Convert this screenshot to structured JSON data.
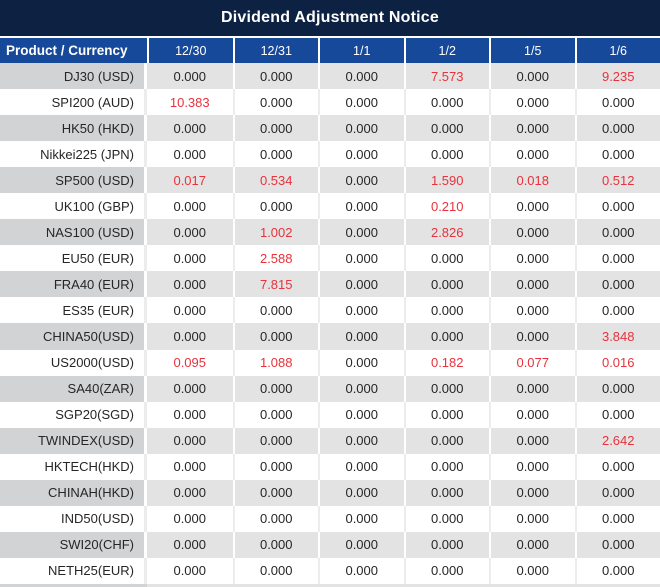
{
  "title": "Dividend Adjustment Notice",
  "table": {
    "product_header": "Product / Currency",
    "date_columns": [
      "12/30",
      "12/31",
      "1/1",
      "1/2",
      "1/5",
      "1/6"
    ],
    "rows": [
      {
        "product": "DJ30 (USD)",
        "values": [
          "0.000",
          "0.000",
          "0.000",
          "7.573",
          "0.000",
          "9.235"
        ],
        "red": [
          3,
          5
        ]
      },
      {
        "product": "SPI200 (AUD)",
        "values": [
          "10.383",
          "0.000",
          "0.000",
          "0.000",
          "0.000",
          "0.000"
        ],
        "red": [
          0
        ]
      },
      {
        "product": "HK50 (HKD)",
        "values": [
          "0.000",
          "0.000",
          "0.000",
          "0.000",
          "0.000",
          "0.000"
        ],
        "red": []
      },
      {
        "product": "Nikkei225 (JPN)",
        "values": [
          "0.000",
          "0.000",
          "0.000",
          "0.000",
          "0.000",
          "0.000"
        ],
        "red": []
      },
      {
        "product": "SP500 (USD)",
        "values": [
          "0.017",
          "0.534",
          "0.000",
          "1.590",
          "0.018",
          "0.512"
        ],
        "red": [
          0,
          1,
          3,
          4,
          5
        ]
      },
      {
        "product": "UK100 (GBP)",
        "values": [
          "0.000",
          "0.000",
          "0.000",
          "0.210",
          "0.000",
          "0.000"
        ],
        "red": [
          3
        ]
      },
      {
        "product": "NAS100 (USD)",
        "values": [
          "0.000",
          "1.002",
          "0.000",
          "2.826",
          "0.000",
          "0.000"
        ],
        "red": [
          1,
          3
        ]
      },
      {
        "product": "EU50 (EUR)",
        "values": [
          "0.000",
          "2.588",
          "0.000",
          "0.000",
          "0.000",
          "0.000"
        ],
        "red": [
          1
        ]
      },
      {
        "product": "FRA40 (EUR)",
        "values": [
          "0.000",
          "7.815",
          "0.000",
          "0.000",
          "0.000",
          "0.000"
        ],
        "red": [
          1
        ]
      },
      {
        "product": "ES35 (EUR)",
        "values": [
          "0.000",
          "0.000",
          "0.000",
          "0.000",
          "0.000",
          "0.000"
        ],
        "red": []
      },
      {
        "product": "CHINA50(USD)",
        "values": [
          "0.000",
          "0.000",
          "0.000",
          "0.000",
          "0.000",
          "3.848"
        ],
        "red": [
          5
        ]
      },
      {
        "product": "US2000(USD)",
        "values": [
          "0.095",
          "1.088",
          "0.000",
          "0.182",
          "0.077",
          "0.016"
        ],
        "red": [
          0,
          1,
          3,
          4,
          5
        ]
      },
      {
        "product": "SA40(ZAR)",
        "values": [
          "0.000",
          "0.000",
          "0.000",
          "0.000",
          "0.000",
          "0.000"
        ],
        "red": []
      },
      {
        "product": "SGP20(SGD)",
        "values": [
          "0.000",
          "0.000",
          "0.000",
          "0.000",
          "0.000",
          "0.000"
        ],
        "red": []
      },
      {
        "product": "TWINDEX(USD)",
        "values": [
          "0.000",
          "0.000",
          "0.000",
          "0.000",
          "0.000",
          "2.642"
        ],
        "red": [
          5
        ]
      },
      {
        "product": "HKTECH(HKD)",
        "values": [
          "0.000",
          "0.000",
          "0.000",
          "0.000",
          "0.000",
          "0.000"
        ],
        "red": []
      },
      {
        "product": "CHINAH(HKD)",
        "values": [
          "0.000",
          "0.000",
          "0.000",
          "0.000",
          "0.000",
          "0.000"
        ],
        "red": []
      },
      {
        "product": "IND50(USD)",
        "values": [
          "0.000",
          "0.000",
          "0.000",
          "0.000",
          "0.000",
          "0.000"
        ],
        "red": []
      },
      {
        "product": "SWI20(CHF)",
        "values": [
          "0.000",
          "0.000",
          "0.000",
          "0.000",
          "0.000",
          "0.000"
        ],
        "red": []
      },
      {
        "product": "NETH25(EUR)",
        "values": [
          "0.000",
          "0.000",
          "0.000",
          "0.000",
          "0.000",
          "0.000"
        ],
        "red": []
      }
    ]
  },
  "colors": {
    "title_bg": "#0d2142",
    "header_bg": "#17499b",
    "row_gray_product": "#d2d3d5",
    "row_gray_value": "#e3e3e4",
    "value_red": "#e8323c",
    "value_black": "#262626"
  }
}
